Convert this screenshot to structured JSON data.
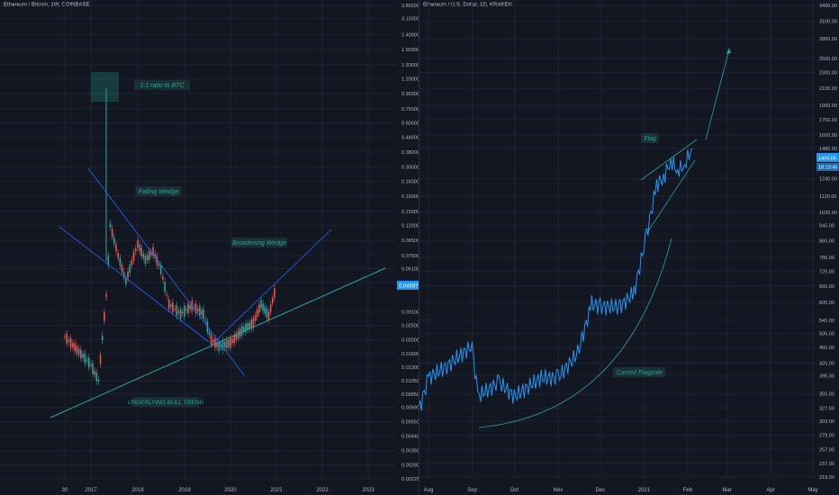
{
  "colors": {
    "background": "#131722",
    "grid": "#1f2330",
    "axis_text": "#b2b5be",
    "up": "#26a69a",
    "down": "#ef5350",
    "line": "#2196f3",
    "trendline": "#2962ff",
    "bull_trendline": "#26a69a",
    "label_bg": "#1b3a3a",
    "label_text": "#26a69a",
    "price_tag": "#2196f3"
  },
  "left_chart": {
    "title": "Ethereum / Bitcoin, 1W, COINBASE",
    "x_tick_labels": [
      "30",
      "2017",
      "2018",
      "2019",
      "2020",
      "2021",
      "2022",
      "2023"
    ],
    "y_tick_labels": [
      "3.80000",
      "3.10000",
      "2.40000",
      "1.90000",
      "1.50000",
      "1.20000",
      "0.95000",
      "0.75000",
      "0.60000",
      "0.48000",
      "0.38000",
      "0.30000",
      "0.24000",
      "0.19000",
      "0.15000",
      "0.12000",
      "0.09500",
      "0.07500",
      "0.06100",
      "0.04900",
      "0.03100",
      "0.02500",
      "0.02000",
      "0.01600",
      "0.01300",
      "0.01050",
      "0.00850",
      "0.00690",
      "0.00550",
      "0.00440",
      "0.00350",
      "0.00280",
      "0.00225"
    ],
    "current_price_tag": "0.04697",
    "annotations": {
      "ratio": "1:1 ratio to BTC",
      "falling_wedge": "Falling Wedge",
      "broadening_wedge": "Broadening Wedge",
      "bull_trend": "UNDERLYING BULL TREND"
    }
  },
  "right_chart": {
    "title": "Ethereum / U.S. Dollar, 1D, KRAKEN",
    "x_tick_labels": [
      "Aug",
      "Sep",
      "Oct",
      "Nov",
      "Dec",
      "2021",
      "Feb",
      "Mar",
      "Apr",
      "May"
    ],
    "y_tick_labels": [
      "3400.00",
      "3100.00",
      "2800.00",
      "2500.00",
      "2300.00",
      "2100.00",
      "1900.00",
      "1750.00",
      "1600.00",
      "1480.00",
      "1240.00",
      "1120.00",
      "1020.00",
      "945.00",
      "865.00",
      "785.00",
      "725.00",
      "665.00",
      "605.00",
      "545.00",
      "505.00",
      "465.00",
      "425.00",
      "395.00",
      "355.00",
      "327.00",
      "303.00",
      "279.00",
      "257.00",
      "237.00",
      "219.00"
    ],
    "price_tags": [
      "1404.06",
      "18:13:45"
    ],
    "annotations": {
      "flag": "Flag",
      "curved_flagpole": "Curved Flagpole"
    }
  },
  "chart_data": [
    {
      "type": "line",
      "title": "Ethereum / Bitcoin, 1W, COINBASE",
      "scale": "log",
      "ylim": [
        0.00225,
        3.8
      ],
      "x": [
        "2016-11",
        "2017-01",
        "2017-03",
        "2017-05",
        "2017-06",
        "2017-08",
        "2017-10",
        "2018-01",
        "2018-03",
        "2018-05",
        "2018-07",
        "2018-09",
        "2018-12",
        "2019-03",
        "2019-06",
        "2019-08",
        "2019-10",
        "2020-01",
        "2020-04",
        "2020-07",
        "2020-09",
        "2020-11",
        "2021-01"
      ],
      "series": [
        {
          "values": [
            0.021,
            0.0135,
            0.0105,
            0.04,
            0.12,
            0.075,
            0.05,
            0.09,
            0.07,
            0.08,
            0.06,
            0.035,
            0.03,
            0.034,
            0.03,
            0.02,
            0.018,
            0.019,
            0.023,
            0.026,
            0.035,
            0.029,
            0.047
          ]
        }
      ]
    },
    {
      "type": "line",
      "title": "Ethereum / U.S. Dollar, 1D, KRAKEN",
      "scale": "log",
      "ylim": [
        219,
        3400
      ],
      "x": [
        "2020-07-25",
        "2020-08-01",
        "2020-08-15",
        "2020-09-01",
        "2020-09-05",
        "2020-09-20",
        "2020-10-01",
        "2020-10-20",
        "2020-11-01",
        "2020-11-15",
        "2020-11-25",
        "2020-12-01",
        "2020-12-15",
        "2020-12-25",
        "2021-01-03",
        "2021-01-10",
        "2021-01-15",
        "2021-01-20",
        "2021-01-25",
        "2021-01-30",
        "2021-02-04"
      ],
      "series": [
        {
          "values": [
            320,
            390,
            420,
            470,
            350,
            380,
            350,
            390,
            390,
            450,
            600,
            590,
            590,
            640,
            900,
            1200,
            1250,
            1380,
            1300,
            1350,
            1480
          ]
        }
      ]
    }
  ]
}
